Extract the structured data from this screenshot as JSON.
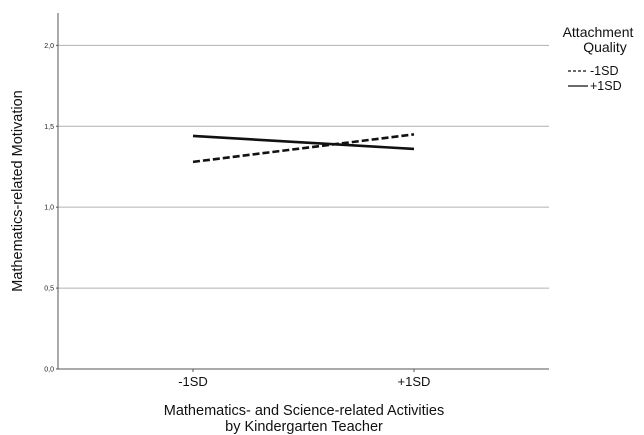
{
  "chart_data": {
    "type": "line",
    "title": "",
    "xlabel": "Mathematics- and Science-related Activities",
    "xlabel_line2": "by Kindergarten Teacher",
    "ylabel": "Mathematics-related Motivation",
    "categories": [
      "-1SD",
      "+1SD"
    ],
    "ylim": [
      0,
      2.2
    ],
    "yticks": [
      0,
      0.5,
      1.0,
      1.5,
      2.0
    ],
    "ytick_labels": [
      "0,0",
      "0,5",
      "1,0",
      "1,5",
      "2,0"
    ],
    "grid": true,
    "legend": {
      "title_line1": "Attachment",
      "title_line2": "Quality",
      "placement": "top-right"
    },
    "series": [
      {
        "name": "-1SD",
        "values": [
          1.28,
          1.45
        ],
        "style": "dashed",
        "color": "#111111"
      },
      {
        "name": "+1SD",
        "values": [
          1.44,
          1.36
        ],
        "style": "solid",
        "color": "#111111"
      }
    ]
  }
}
